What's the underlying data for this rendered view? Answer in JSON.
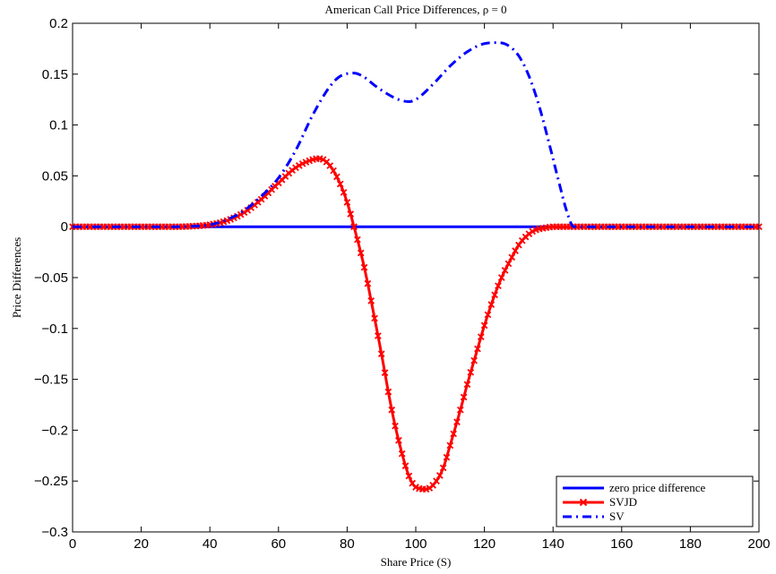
{
  "chart_data": {
    "type": "line",
    "title": "American Call Price Differences, ρ = 0",
    "xlabel": "Share Price (S)",
    "ylabel": "Price Differences",
    "xlim": [
      0,
      200
    ],
    "ylim": [
      -0.3,
      0.2
    ],
    "xticks": [
      0,
      20,
      40,
      60,
      80,
      100,
      120,
      140,
      160,
      180,
      200
    ],
    "xtick_labels": [
      "0",
      "20",
      "40",
      "60",
      "80",
      "100",
      "120",
      "140",
      "160",
      "180",
      "200"
    ],
    "yticks": [
      -0.3,
      -0.25,
      -0.2,
      -0.15,
      -0.1,
      -0.05,
      0,
      0.05,
      0.1,
      0.15,
      0.2
    ],
    "ytick_labels": [
      "−0.3",
      "−0.25",
      "−0.2",
      "−0.15",
      "−0.1",
      "−0.05",
      "0",
      "0.05",
      "0.1",
      "0.15",
      "0.2"
    ],
    "grid": false,
    "legend_position": "bottom-right",
    "series": [
      {
        "name": "zero price difference",
        "color": "#0000ff",
        "style": "solid",
        "marker": "none",
        "x": [
          0,
          200
        ],
        "y": [
          0,
          0
        ]
      },
      {
        "name": "SVJD",
        "color": "#ff0000",
        "style": "solid",
        "marker": "x",
        "x": [
          0,
          10,
          20,
          30,
          35,
          40,
          45,
          50,
          55,
          60,
          65,
          70,
          72,
          75,
          78,
          80,
          82,
          85,
          88,
          90,
          93,
          95,
          98,
          100,
          103,
          106,
          108,
          110,
          113,
          115,
          118,
          120,
          123,
          125,
          128,
          130,
          133,
          135,
          138,
          140,
          142,
          145,
          150,
          160,
          170,
          180,
          190,
          200
        ],
        "y": [
          0,
          0,
          0,
          0,
          0.0005,
          0.002,
          0.006,
          0.014,
          0.027,
          0.043,
          0.058,
          0.066,
          0.067,
          0.06,
          0.042,
          0.024,
          0.0,
          -0.04,
          -0.09,
          -0.125,
          -0.18,
          -0.21,
          -0.245,
          -0.256,
          -0.258,
          -0.25,
          -0.237,
          -0.215,
          -0.18,
          -0.155,
          -0.12,
          -0.097,
          -0.067,
          -0.05,
          -0.03,
          -0.018,
          -0.007,
          -0.003,
          -0.001,
          0,
          0,
          0,
          0,
          0,
          0,
          0,
          0,
          0
        ]
      },
      {
        "name": "SV",
        "color": "#0000ff",
        "style": "dashdot",
        "marker": "none",
        "x": [
          0,
          10,
          20,
          30,
          35,
          40,
          45,
          50,
          55,
          60,
          65,
          70,
          75,
          78,
          82,
          85,
          88,
          92,
          95,
          98,
          100,
          105,
          110,
          115,
          120,
          124,
          127,
          130,
          133,
          136,
          139,
          142,
          144,
          146,
          150,
          160,
          170,
          180,
          190,
          200
        ],
        "y": [
          0,
          0,
          0,
          0,
          0.0005,
          0.002,
          0.007,
          0.016,
          0.03,
          0.048,
          0.075,
          0.11,
          0.138,
          0.148,
          0.151,
          0.147,
          0.139,
          0.13,
          0.125,
          0.123,
          0.125,
          0.14,
          0.158,
          0.172,
          0.18,
          0.181,
          0.178,
          0.168,
          0.148,
          0.118,
          0.08,
          0.04,
          0.015,
          0.0,
          0,
          0,
          0,
          0,
          0,
          0
        ]
      }
    ]
  }
}
